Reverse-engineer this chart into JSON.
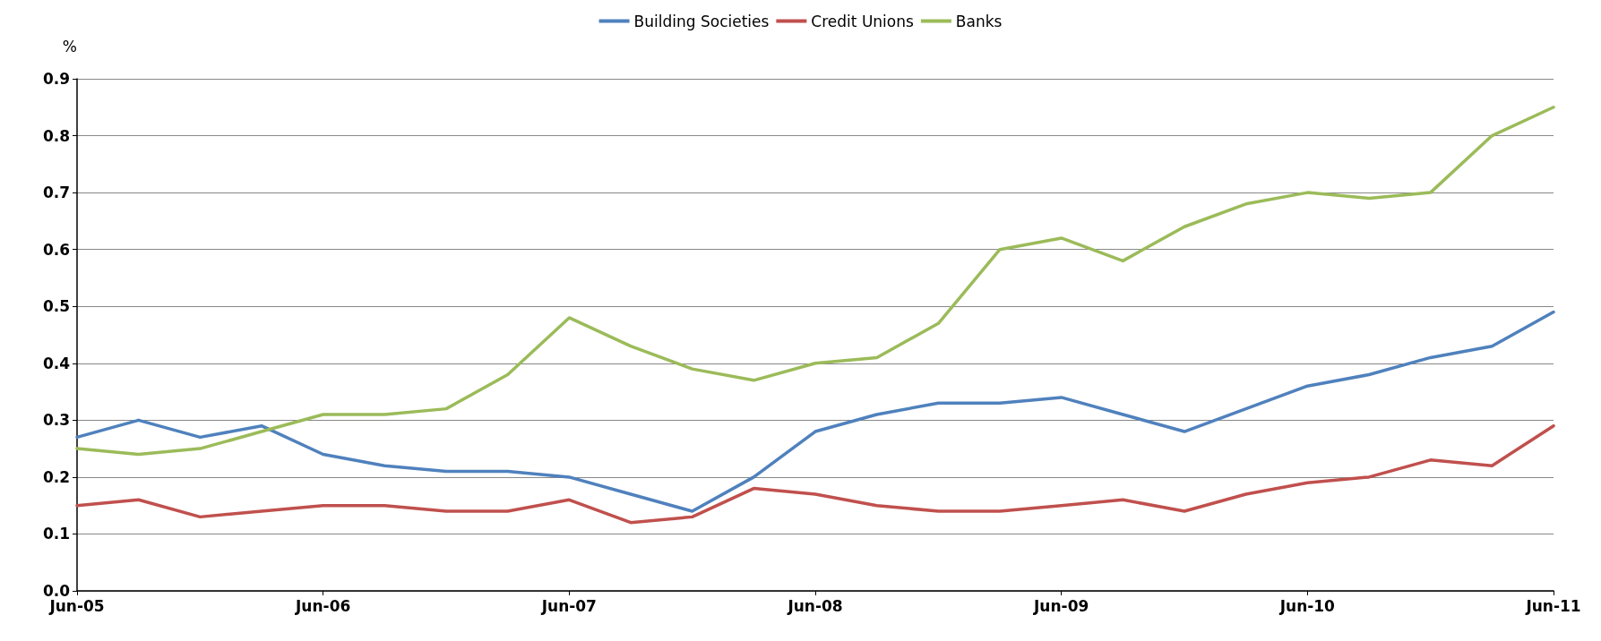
{
  "chart_data": {
    "type": "line",
    "ylabel": "%",
    "categories": [
      "Jun-05",
      null,
      null,
      null,
      "Jun-06",
      null,
      null,
      null,
      "Jun-07",
      null,
      null,
      null,
      "Jun-08",
      null,
      null,
      null,
      "Jun-09",
      null,
      null,
      null,
      "Jun-10",
      null,
      null,
      null,
      "Jun-11"
    ],
    "series": [
      {
        "name": "Building Societies",
        "color": "#4f81bd",
        "values": [
          0.27,
          0.3,
          0.27,
          0.29,
          0.24,
          0.22,
          0.21,
          0.21,
          0.2,
          0.17,
          0.14,
          0.2,
          0.28,
          0.31,
          0.33,
          0.33,
          0.34,
          0.31,
          0.28,
          0.32,
          0.36,
          0.38,
          0.41,
          0.43,
          0.49
        ]
      },
      {
        "name": "Credit Unions",
        "color": "#c0504d",
        "values": [
          0.15,
          0.16,
          0.13,
          0.14,
          0.15,
          0.15,
          0.14,
          0.14,
          0.16,
          0.12,
          0.13,
          0.18,
          0.17,
          0.15,
          0.14,
          0.14,
          0.15,
          0.16,
          0.14,
          0.17,
          0.19,
          0.2,
          0.23,
          0.22,
          0.29
        ]
      },
      {
        "name": "Banks",
        "color": "#9bbb59",
        "values": [
          0.25,
          0.24,
          0.25,
          0.28,
          0.31,
          0.31,
          0.32,
          0.38,
          0.48,
          0.43,
          0.39,
          0.37,
          0.4,
          0.41,
          0.47,
          0.6,
          0.62,
          0.58,
          0.64,
          0.68,
          0.7,
          0.69,
          0.7,
          0.8,
          0.85
        ]
      }
    ],
    "ylim": [
      0,
      0.9
    ],
    "yticks": [
      {
        "value": 0,
        "label": "0.0"
      },
      {
        "value": 0.1,
        "label": "0.1"
      },
      {
        "value": 0.2,
        "label": "0.2"
      },
      {
        "value": 0.3,
        "label": "0.3"
      },
      {
        "value": 0.4,
        "label": "0.4"
      },
      {
        "value": 0.5,
        "label": "0.5"
      },
      {
        "value": 0.6,
        "label": "0.6"
      },
      {
        "value": 0.7,
        "label": "0.7"
      },
      {
        "value": 0.8,
        "label": "0.8"
      },
      {
        "value": 0.9,
        "label": "0.9"
      }
    ],
    "grid": "y",
    "legend": "top",
    "marker": "none",
    "line_style": "solid"
  }
}
